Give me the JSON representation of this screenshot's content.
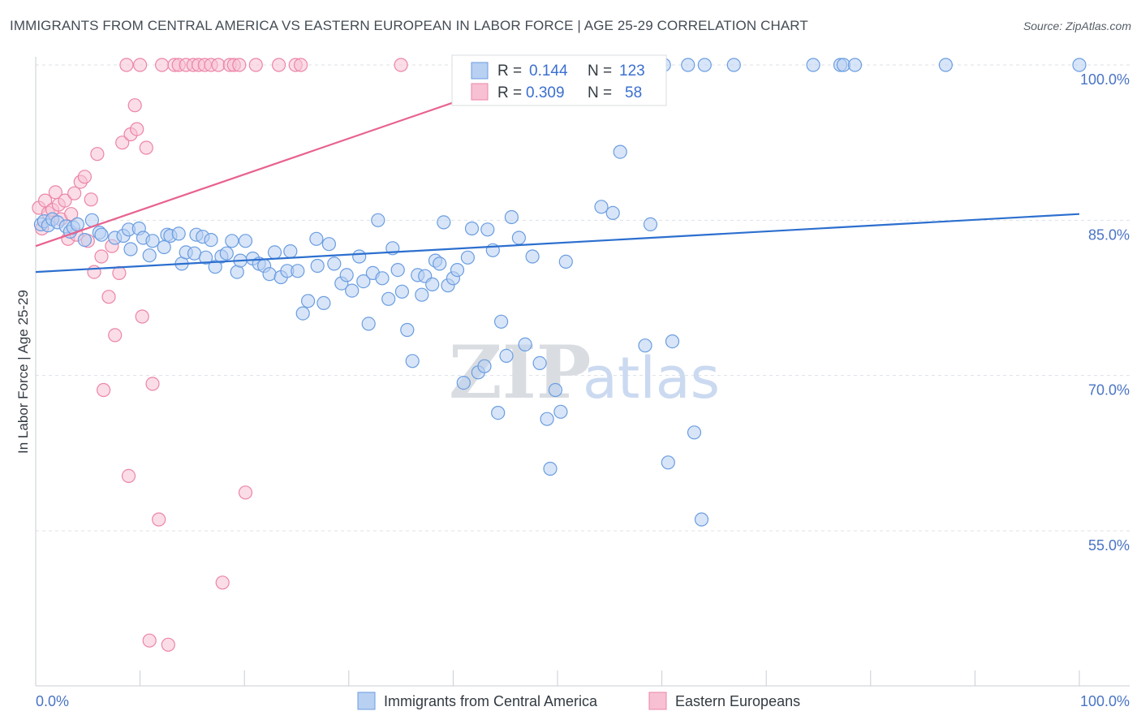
{
  "header": {
    "title": "IMMIGRANTS FROM CENTRAL AMERICA VS EASTERN EUROPEAN IN LABOR FORCE | AGE 25-29 CORRELATION CHART",
    "source": "Source: ZipAtlas.com"
  },
  "watermark": {
    "zip": "ZIP",
    "atlas": "atlas"
  },
  "legend_top": {
    "r_label": "R =",
    "n_label": "N =",
    "blue": {
      "r": "0.144",
      "n": "123"
    },
    "pink": {
      "r": "0.309",
      "n": "58"
    }
  },
  "chart_data": {
    "type": "scatter",
    "title": "IMMIGRANTS FROM CENTRAL AMERICA VS EASTERN EUROPEAN IN LABOR FORCE | AGE 25-29 CORRELATION CHART",
    "ylabel": "In Labor Force | Age 25-29",
    "xlabel": "",
    "xlim": [
      0,
      100
    ],
    "ylim": [
      40.3,
      101.5
    ],
    "x_tick_labels": [
      "0.0%",
      "100.0%"
    ],
    "y_ticks": [
      100,
      85,
      70,
      55
    ],
    "y_tick_labels": [
      "100.0%",
      "85.0%",
      "70.0%",
      "55.0%"
    ],
    "grid": "horizontal dashed",
    "legend": "bottom-center",
    "colors": {
      "blue": "#6a9de0",
      "blue_fill": "#b8d0f2",
      "pink": "#ec85a6",
      "pink_fill": "#f7c1d3",
      "blue_line": "#2c6fcf",
      "pink_line": "#e8628f"
    },
    "series": [
      {
        "name": "Immigrants from Central America",
        "color": "#6a9de0",
        "r": 0.144,
        "n": 123,
        "trend": {
          "x": [
            0,
            100
          ],
          "y": [
            80.0,
            85.6
          ]
        },
        "points": [
          [
            0.5,
            84.6
          ],
          [
            0.8,
            84.9
          ],
          [
            1.2,
            84.5
          ],
          [
            1.6,
            85.1
          ],
          [
            2.1,
            84.8
          ],
          [
            2.9,
            84.4
          ],
          [
            3.3,
            83.9
          ],
          [
            3.6,
            84.3
          ],
          [
            4.0,
            84.6
          ],
          [
            5.4,
            85.0
          ],
          [
            4.7,
            83.1
          ],
          [
            6.1,
            83.8
          ],
          [
            6.3,
            83.6
          ],
          [
            7.6,
            83.3
          ],
          [
            8.4,
            83.5
          ],
          [
            8.9,
            84.1
          ],
          [
            9.1,
            82.2
          ],
          [
            9.9,
            84.2
          ],
          [
            10.3,
            83.3
          ],
          [
            10.9,
            81.6
          ],
          [
            11.2,
            83.0
          ],
          [
            12.3,
            82.4
          ],
          [
            12.6,
            83.6
          ],
          [
            12.9,
            83.5
          ],
          [
            13.7,
            83.7
          ],
          [
            14.0,
            80.8
          ],
          [
            14.4,
            81.9
          ],
          [
            15.2,
            81.8
          ],
          [
            15.4,
            83.6
          ],
          [
            16.0,
            83.4
          ],
          [
            16.3,
            81.4
          ],
          [
            16.8,
            83.1
          ],
          [
            17.2,
            80.5
          ],
          [
            17.8,
            81.5
          ],
          [
            18.3,
            81.8
          ],
          [
            18.8,
            83.0
          ],
          [
            19.3,
            80.0
          ],
          [
            19.6,
            81.1
          ],
          [
            20.1,
            83.0
          ],
          [
            20.8,
            81.3
          ],
          [
            21.4,
            80.8
          ],
          [
            21.9,
            80.6
          ],
          [
            22.4,
            79.8
          ],
          [
            22.9,
            81.9
          ],
          [
            23.5,
            79.5
          ],
          [
            24.1,
            80.1
          ],
          [
            24.4,
            82.0
          ],
          [
            25.1,
            80.1
          ],
          [
            25.6,
            76.0
          ],
          [
            26.1,
            77.2
          ],
          [
            27.0,
            80.6
          ],
          [
            26.9,
            83.2
          ],
          [
            27.6,
            77.0
          ],
          [
            28.1,
            82.7
          ],
          [
            28.6,
            80.8
          ],
          [
            29.3,
            78.9
          ],
          [
            29.8,
            79.7
          ],
          [
            30.3,
            78.2
          ],
          [
            31.0,
            81.5
          ],
          [
            31.4,
            79.1
          ],
          [
            31.9,
            75.0
          ],
          [
            32.3,
            79.9
          ],
          [
            32.8,
            85.0
          ],
          [
            33.2,
            79.4
          ],
          [
            33.8,
            77.4
          ],
          [
            34.2,
            82.3
          ],
          [
            34.7,
            80.2
          ],
          [
            35.1,
            78.1
          ],
          [
            35.6,
            74.4
          ],
          [
            36.1,
            71.4
          ],
          [
            36.6,
            79.7
          ],
          [
            37.0,
            77.8
          ],
          [
            37.3,
            79.6
          ],
          [
            38.0,
            78.8
          ],
          [
            38.3,
            81.1
          ],
          [
            38.7,
            80.8
          ],
          [
            39.1,
            84.8
          ],
          [
            39.5,
            78.7
          ],
          [
            40.0,
            79.4
          ],
          [
            40.4,
            80.2
          ],
          [
            41.0,
            69.3
          ],
          [
            41.4,
            81.4
          ],
          [
            41.8,
            84.2
          ],
          [
            42.4,
            70.3
          ],
          [
            43.0,
            70.9
          ],
          [
            43.3,
            84.1
          ],
          [
            43.8,
            82.1
          ],
          [
            44.3,
            66.4
          ],
          [
            44.6,
            75.2
          ],
          [
            45.1,
            71.9
          ],
          [
            45.6,
            85.3
          ],
          [
            46.3,
            83.3
          ],
          [
            46.9,
            73.0
          ],
          [
            47.6,
            81.5
          ],
          [
            48.3,
            71.2
          ],
          [
            49.0,
            65.8
          ],
          [
            49.3,
            61.0
          ],
          [
            50.3,
            66.5
          ],
          [
            49.8,
            68.6
          ],
          [
            50.8,
            81.0
          ],
          [
            54.2,
            86.3
          ],
          [
            55.3,
            85.7
          ],
          [
            56.0,
            91.6
          ],
          [
            58.4,
            72.9
          ],
          [
            58.9,
            84.6
          ],
          [
            60.6,
            61.6
          ],
          [
            61.0,
            73.3
          ],
          [
            63.1,
            64.5
          ],
          [
            63.8,
            56.1
          ],
          [
            60.2,
            100
          ],
          [
            62.5,
            100
          ],
          [
            64.1,
            100
          ],
          [
            66.9,
            100
          ],
          [
            74.5,
            100
          ],
          [
            77.1,
            100
          ],
          [
            77.4,
            100
          ],
          [
            78.5,
            100
          ],
          [
            87.2,
            100
          ],
          [
            100,
            100
          ],
          [
            53.2,
            100
          ],
          [
            56.1,
            100
          ],
          [
            57.6,
            100
          ],
          [
            58.7,
            100
          ]
        ]
      },
      {
        "name": "Eastern Europeans",
        "color": "#ec85a6",
        "r": 0.309,
        "n": 58,
        "trend": {
          "x": [
            0,
            50.5
          ],
          "y": [
            82.5,
            100
          ]
        },
        "points": [
          [
            0.3,
            86.2
          ],
          [
            0.6,
            84.2
          ],
          [
            0.9,
            86.9
          ],
          [
            1.2,
            85.7
          ],
          [
            1.6,
            86.0
          ],
          [
            1.9,
            87.7
          ],
          [
            2.2,
            86.5
          ],
          [
            2.4,
            85.1
          ],
          [
            2.8,
            86.9
          ],
          [
            3.1,
            83.2
          ],
          [
            3.4,
            85.6
          ],
          [
            3.7,
            87.6
          ],
          [
            3.9,
            83.6
          ],
          [
            4.3,
            88.7
          ],
          [
            4.7,
            89.2
          ],
          [
            5.0,
            83.0
          ],
          [
            5.3,
            87.0
          ],
          [
            5.6,
            80.0
          ],
          [
            5.9,
            91.4
          ],
          [
            6.3,
            81.5
          ],
          [
            6.5,
            68.6
          ],
          [
            7.0,
            77.6
          ],
          [
            7.3,
            82.5
          ],
          [
            7.6,
            73.9
          ],
          [
            8.0,
            79.9
          ],
          [
            8.3,
            92.5
          ],
          [
            8.7,
            100
          ],
          [
            8.9,
            60.3
          ],
          [
            9.1,
            93.3
          ],
          [
            9.5,
            96.1
          ],
          [
            9.7,
            93.8
          ],
          [
            10.0,
            100
          ],
          [
            10.2,
            75.7
          ],
          [
            10.6,
            92.0
          ],
          [
            10.9,
            44.4
          ],
          [
            11.2,
            69.2
          ],
          [
            11.8,
            56.1
          ],
          [
            12.1,
            100
          ],
          [
            12.7,
            44.0
          ],
          [
            13.3,
            100
          ],
          [
            13.7,
            100
          ],
          [
            14.4,
            100
          ],
          [
            15.1,
            100
          ],
          [
            15.6,
            100
          ],
          [
            16.2,
            100
          ],
          [
            16.8,
            100
          ],
          [
            17.5,
            100
          ],
          [
            17.9,
            50.0
          ],
          [
            18.6,
            100
          ],
          [
            19.0,
            100
          ],
          [
            19.5,
            100
          ],
          [
            20.1,
            58.7
          ],
          [
            21.1,
            100
          ],
          [
            23.3,
            100
          ],
          [
            24.9,
            100
          ],
          [
            25.4,
            100
          ],
          [
            35.0,
            100
          ],
          [
            48.5,
            100
          ]
        ]
      }
    ]
  },
  "legend_bottom": [
    {
      "label": "Immigrants from Central America",
      "color": "#6a9de0"
    },
    {
      "label": "Eastern Europeans",
      "color": "#ec85a6"
    }
  ]
}
